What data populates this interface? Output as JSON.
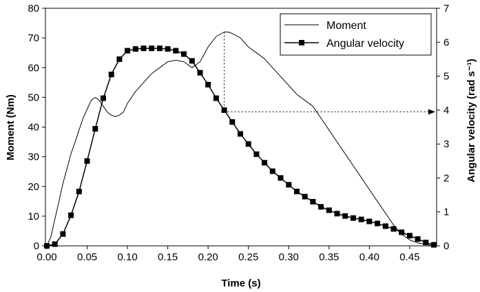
{
  "chart_data": {
    "type": "line",
    "xlabel": "Time (s)",
    "ylabel_left": "Moment (Nm)",
    "ylabel_right": "Angular velocity (rad s⁻¹)",
    "xlim": [
      0,
      0.48
    ],
    "ylim_left": [
      0,
      80
    ],
    "ylim_right": [
      0,
      7
    ],
    "xticks": [
      "0.00",
      "0.05",
      "0.10",
      "0.15",
      "0.20",
      "0.25",
      "0.30",
      "0.35",
      "0.40",
      "0.45"
    ],
    "yticks_left": [
      "0",
      "10",
      "20",
      "30",
      "40",
      "50",
      "60",
      "70",
      "80"
    ],
    "yticks_right": [
      "0",
      "1",
      "2",
      "3",
      "4",
      "5",
      "6",
      "7"
    ],
    "grid": false,
    "legend_position": "top-right",
    "legend": [
      "Moment",
      "Angular velocity"
    ],
    "annotation": {
      "type": "dotted-arrow",
      "x": 0.22,
      "from_moment": 72,
      "to_angular_velocity": 3.95
    },
    "series": [
      {
        "name": "Moment",
        "axis": "left",
        "color": "#000000",
        "x": [
          0.0,
          0.005,
          0.01,
          0.015,
          0.02,
          0.025,
          0.03,
          0.035,
          0.04,
          0.045,
          0.05,
          0.055,
          0.06,
          0.065,
          0.07,
          0.075,
          0.08,
          0.085,
          0.09,
          0.095,
          0.1,
          0.11,
          0.12,
          0.13,
          0.14,
          0.15,
          0.16,
          0.17,
          0.18,
          0.19,
          0.2,
          0.21,
          0.22,
          0.225,
          0.23,
          0.24,
          0.25,
          0.26,
          0.27,
          0.28,
          0.29,
          0.3,
          0.31,
          0.32,
          0.33,
          0.34,
          0.35,
          0.36,
          0.37,
          0.38,
          0.39,
          0.4,
          0.41,
          0.42,
          0.43,
          0.44,
          0.45,
          0.46,
          0.47,
          0.48
        ],
        "values": [
          0,
          3,
          9,
          15,
          21,
          26,
          31,
          35,
          39,
          43,
          46,
          49,
          50,
          49,
          47,
          45,
          44,
          43.5,
          44,
          45,
          48,
          52,
          55,
          58,
          60,
          62,
          62.5,
          62,
          60,
          62,
          67,
          70.5,
          72,
          72,
          71.5,
          70,
          67,
          65,
          63,
          60,
          57,
          54,
          51,
          49,
          47,
          43,
          39,
          35,
          31,
          27,
          23,
          19,
          15,
          11,
          7,
          4,
          2,
          1,
          0.5,
          0
        ]
      },
      {
        "name": "Angular velocity",
        "axis": "right",
        "color": "#000000",
        "marker": "square",
        "x": [
          0.0,
          0.01,
          0.02,
          0.03,
          0.04,
          0.05,
          0.06,
          0.07,
          0.08,
          0.09,
          0.1,
          0.11,
          0.12,
          0.13,
          0.14,
          0.15,
          0.16,
          0.17,
          0.18,
          0.19,
          0.2,
          0.21,
          0.22,
          0.23,
          0.24,
          0.25,
          0.26,
          0.27,
          0.28,
          0.29,
          0.3,
          0.31,
          0.32,
          0.33,
          0.34,
          0.35,
          0.36,
          0.37,
          0.38,
          0.39,
          0.4,
          0.41,
          0.42,
          0.43,
          0.44,
          0.45,
          0.46,
          0.47,
          0.48
        ],
        "values": [
          0,
          0.05,
          0.35,
          0.9,
          1.6,
          2.5,
          3.45,
          4.35,
          5.05,
          5.5,
          5.75,
          5.8,
          5.82,
          5.82,
          5.82,
          5.8,
          5.75,
          5.65,
          5.45,
          5.1,
          4.75,
          4.35,
          4.0,
          3.65,
          3.3,
          3.0,
          2.7,
          2.45,
          2.2,
          2.0,
          1.8,
          1.6,
          1.45,
          1.3,
          1.15,
          1.05,
          0.95,
          0.88,
          0.82,
          0.78,
          0.72,
          0.66,
          0.58,
          0.5,
          0.4,
          0.3,
          0.2,
          0.1,
          0.03
        ]
      }
    ]
  }
}
